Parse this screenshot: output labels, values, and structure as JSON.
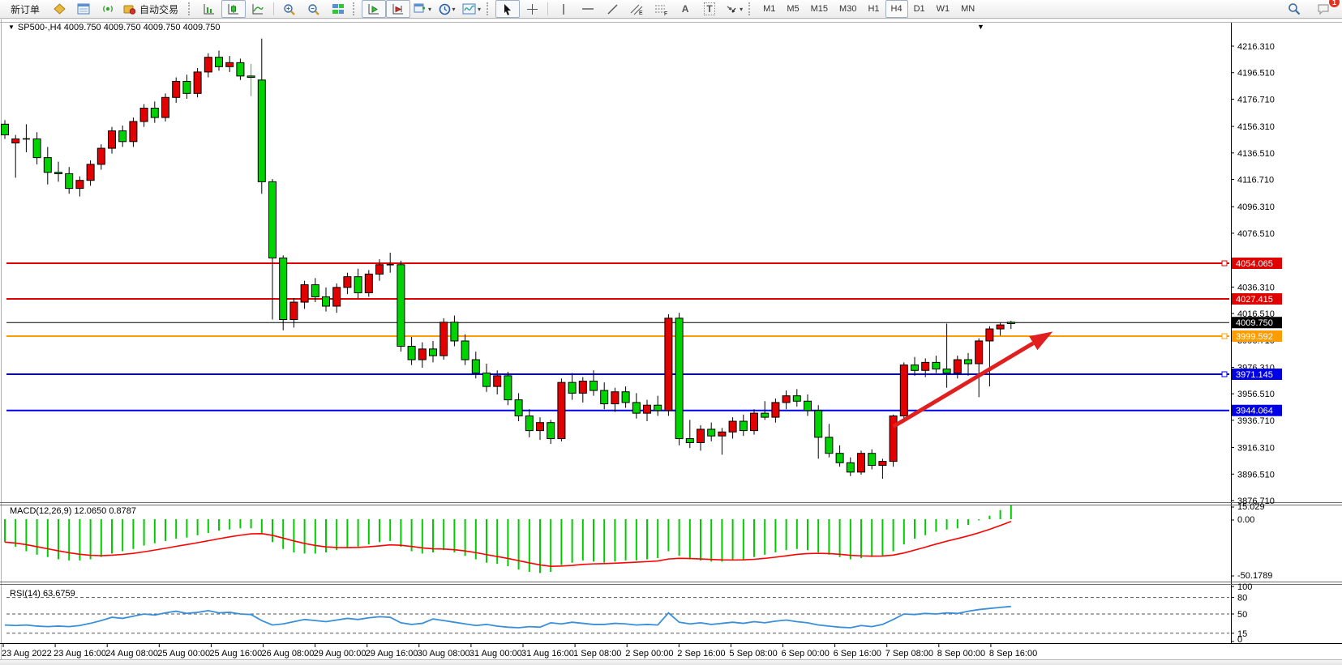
{
  "toolbar": {
    "new_order": "新订单",
    "autotrade": "自动交易",
    "timeframes": [
      "M1",
      "M5",
      "M15",
      "M30",
      "H1",
      "H4",
      "D1",
      "W1",
      "MN"
    ],
    "active_timeframe": "H4",
    "notification_count": "1",
    "icon_letters": {
      "text": "A",
      "label": "T",
      "channel": "E",
      "fibo": "F"
    }
  },
  "chart_data": {
    "type": "candlestick",
    "symbol": "SP500-",
    "period": "H4",
    "symbol_ohlc": "SP500-,H4  4009.750 4009.750 4009.750 4009.750",
    "dropdown_marker": "▼",
    "shift_marker": "▼",
    "colors": {
      "up": "#E30000",
      "down": "#00D400",
      "wick": "#000000",
      "background": "#FFFFFF"
    },
    "price_axis": {
      "top_price": 4216.31,
      "bottom_price": 3876.71,
      "ticks": [
        "4216.310",
        "4196.510",
        "4176.710",
        "4156.310",
        "4136.510",
        "4116.710",
        "4096.310",
        "4076.510",
        "4036.310",
        "4016.510",
        "3996.710",
        "3976.310",
        "3956.510",
        "3936.710",
        "3916.310",
        "3896.510",
        "3876.710"
      ]
    },
    "hlines": [
      {
        "price": 4054.065,
        "label": "4054.065",
        "color": "#E00000",
        "width": 2,
        "marker": true
      },
      {
        "price": 4027.415,
        "label": "4027.415",
        "color": "#E00000",
        "width": 2,
        "marker": false
      },
      {
        "price": 4009.75,
        "label": "4009.750",
        "color": "#000000",
        "width": 1,
        "marker": false
      },
      {
        "price": 3999.592,
        "label": "3999.592",
        "color": "#FF9C00",
        "width": 2,
        "marker": true
      },
      {
        "price": 3971.145,
        "label": "3971.145",
        "color": "#0000E8",
        "width": 2,
        "marker": true
      },
      {
        "price": 3944.064,
        "label": "3944.064",
        "color": "#0000E8",
        "width": 2,
        "marker": false
      }
    ],
    "candles": [
      [
        4158,
        4161,
        4147,
        4150
      ],
      [
        4144,
        4150,
        4118,
        4147
      ],
      [
        4147,
        4158,
        4137,
        4147,
        "k"
      ],
      [
        4147,
        4152,
        4128,
        4133
      ],
      [
        4133,
        4141,
        4113,
        4122
      ],
      [
        4122,
        4130,
        4115,
        4121
      ],
      [
        4121,
        4126,
        4106,
        4110
      ],
      [
        4110,
        4119,
        4104,
        4116
      ],
      [
        4116,
        4131,
        4112,
        4128
      ],
      [
        4128,
        4143,
        4124,
        4140
      ],
      [
        4140,
        4156,
        4136,
        4153
      ],
      [
        4153,
        4157,
        4141,
        4145
      ],
      [
        4145,
        4163,
        4141,
        4160
      ],
      [
        4160,
        4173,
        4156,
        4170
      ],
      [
        4170,
        4175,
        4159,
        4163
      ],
      [
        4163,
        4181,
        4160,
        4178
      ],
      [
        4178,
        4193,
        4174,
        4190
      ],
      [
        4190,
        4195,
        4177,
        4181
      ],
      [
        4181,
        4200,
        4178,
        4197
      ],
      [
        4197,
        4211,
        4193,
        4208
      ],
      [
        4208,
        4213,
        4198,
        4201
      ],
      [
        4201,
        4209,
        4197,
        4204
      ],
      [
        4204,
        4207,
        4191,
        4194
      ],
      [
        4194,
        4203,
        4179,
        4193,
        "g"
      ],
      [
        4191,
        4222,
        4106,
        4115
      ],
      [
        4115,
        4117,
        4012,
        4058
      ],
      [
        4058,
        4060,
        4004,
        4012
      ],
      [
        4012,
        4028,
        4006,
        4025
      ],
      [
        4025,
        4041,
        4020,
        4038
      ],
      [
        4038,
        4043,
        4025,
        4029
      ],
      [
        4029,
        4036,
        4018,
        4022
      ],
      [
        4022,
        4039,
        4017,
        4036
      ],
      [
        4036,
        4047,
        4031,
        4044
      ],
      [
        4044,
        4050,
        4028,
        4032
      ],
      [
        4032,
        4049,
        4029,
        4046
      ],
      [
        4046,
        4057,
        4041,
        4053
      ],
      [
        4053,
        4062,
        4047,
        4053,
        "k"
      ],
      [
        4053,
        4056,
        3988,
        3992
      ],
      [
        3992,
        3999,
        3978,
        3982
      ],
      [
        3982,
        3995,
        3976,
        3990
      ],
      [
        3990,
        3996,
        3980,
        3985
      ],
      [
        3985,
        4013,
        3982,
        4010
      ],
      [
        4010,
        4015,
        3992,
        3996
      ],
      [
        3996,
        4001,
        3978,
        3982
      ],
      [
        3982,
        3988,
        3968,
        3972
      ],
      [
        3972,
        3979,
        3958,
        3962
      ],
      [
        3962,
        3974,
        3956,
        3970
      ],
      [
        3970,
        3973,
        3948,
        3952
      ],
      [
        3952,
        3957,
        3936,
        3940
      ],
      [
        3940,
        3945,
        3924,
        3929
      ],
      [
        3929,
        3939,
        3922,
        3935
      ],
      [
        3935,
        3937,
        3919,
        3923
      ],
      [
        3923,
        3968,
        3921,
        3965
      ],
      [
        3965,
        3972,
        3952,
        3957
      ],
      [
        3957,
        3969,
        3950,
        3966
      ],
      [
        3966,
        3974,
        3955,
        3959
      ],
      [
        3959,
        3965,
        3945,
        3949
      ],
      [
        3949,
        3961,
        3943,
        3958
      ],
      [
        3958,
        3962,
        3946,
        3950
      ],
      [
        3950,
        3957,
        3938,
        3942
      ],
      [
        3942,
        3952,
        3936,
        3948
      ],
      [
        3948,
        3955,
        3940,
        3944
      ],
      [
        3944,
        4016,
        3940,
        4013
      ],
      [
        4013,
        4017,
        3918,
        3923
      ],
      [
        3923,
        3937,
        3916,
        3920
      ],
      [
        3920,
        3933,
        3914,
        3930
      ],
      [
        3930,
        3935,
        3921,
        3925
      ],
      [
        3925,
        3931,
        3911,
        3928
      ],
      [
        3928,
        3939,
        3923,
        3936
      ],
      [
        3936,
        3941,
        3925,
        3929
      ],
      [
        3929,
        3945,
        3926,
        3942
      ],
      [
        3942,
        3951,
        3937,
        3939
      ],
      [
        3939,
        3953,
        3935,
        3950
      ],
      [
        3950,
        3959,
        3945,
        3955
      ],
      [
        3955,
        3960,
        3947,
        3951
      ],
      [
        3951,
        3956,
        3940,
        3944
      ],
      [
        3944,
        3948,
        3908,
        3924
      ],
      [
        3924,
        3934,
        3909,
        3912
      ],
      [
        3912,
        3918,
        3902,
        3905
      ],
      [
        3905,
        3909,
        3895,
        3898
      ],
      [
        3898,
        3914,
        3896,
        3912
      ],
      [
        3912,
        3915,
        3900,
        3903
      ],
      [
        3903,
        3908,
        3893,
        3906
      ],
      [
        3906,
        3941,
        3902,
        3940
      ],
      [
        3940,
        3980,
        3936,
        3978
      ],
      [
        3978,
        3984,
        3970,
        3974
      ],
      [
        3974,
        3983,
        3969,
        3980
      ],
      [
        3980,
        3985,
        3972,
        3975
      ],
      [
        3975,
        4009,
        3961,
        3972
      ],
      [
        3972,
        3985,
        3968,
        3982
      ],
      [
        3982,
        3987,
        3970,
        3979
      ],
      [
        3979,
        3998,
        3954,
        3996
      ],
      [
        3996,
        4007,
        3962,
        4005
      ],
      [
        4005,
        4010,
        4000,
        4008
      ],
      [
        4010,
        4011,
        4005,
        4009
      ]
    ],
    "time_labels": [
      "23 Aug 2022",
      "23 Aug 16:00",
      "24 Aug 08:00",
      "25 Aug 00:00",
      "25 Aug 16:00",
      "26 Aug 08:00",
      "29 Aug 00:00",
      "29 Aug 16:00",
      "30 Aug 08:00",
      "31 Aug 00:00",
      "31 Aug 16:00",
      "1 Sep 08:00",
      "2 Sep 00:00",
      "2 Sep 16:00",
      "5 Sep 08:00",
      "6 Sep 00:00",
      "6 Sep 16:00",
      "7 Sep 08:00",
      "8 Sep 00:00",
      "8 Sep 16:00"
    ],
    "arrow": {
      "from_index": 83,
      "from_price": 3932,
      "to_index": 97.9,
      "to_price": 4003,
      "color": "#E01F1F"
    },
    "macd": {
      "name": "MACD(12,26,9)",
      "value": "12.0650",
      "signal": "0.8787",
      "max_label": "15.029",
      "zero_label": "0.00",
      "min_label": "-50.1789",
      "hist_color": "#00CC00",
      "signal_color": "#FF0000",
      "histogram": [
        -20,
        -24,
        -28,
        -31,
        -33,
        -35,
        -36,
        -36,
        -35,
        -33,
        -30,
        -28,
        -26,
        -23,
        -21,
        -19,
        -17,
        -16,
        -14,
        -12,
        -10,
        -9,
        -8,
        -8,
        -12,
        -20,
        -26,
        -29,
        -30,
        -30,
        -29,
        -27,
        -25,
        -24,
        -22,
        -20,
        -19,
        -24,
        -28,
        -30,
        -29,
        -27,
        -29,
        -32,
        -35,
        -38,
        -39,
        -41,
        -44,
        -46,
        -47,
        -46,
        -40,
        -38,
        -36,
        -37,
        -38,
        -37,
        -36,
        -36,
        -35,
        -34,
        -28,
        -32,
        -35,
        -36,
        -37,
        -37,
        -36,
        -35,
        -33,
        -31,
        -29,
        -27,
        -26,
        -27,
        -29,
        -31,
        -33,
        -35,
        -34,
        -33,
        -32,
        -28,
        -22,
        -17,
        -14,
        -11,
        -9,
        -8,
        -5,
        -1,
        3,
        8,
        12.06
      ]
    },
    "rsi": {
      "name": "RSI(14)",
      "value": "63.6759",
      "color": "#3A8FD9",
      "levels": [
        80,
        50,
        15
      ],
      "axis_labels": [
        "100",
        "80",
        "50",
        "15",
        "0"
      ],
      "values": [
        30,
        29,
        30,
        28,
        27,
        28,
        27,
        29,
        33,
        38,
        44,
        42,
        46,
        50,
        48,
        52,
        55,
        51,
        53,
        56,
        52,
        53,
        50,
        49,
        38,
        30,
        32,
        36,
        40,
        38,
        36,
        39,
        42,
        40,
        43,
        45,
        44,
        34,
        31,
        33,
        41,
        38,
        35,
        32,
        29,
        31,
        28,
        26,
        25,
        27,
        26,
        34,
        32,
        35,
        33,
        31,
        31,
        33,
        32,
        30,
        31,
        30,
        52,
        35,
        32,
        34,
        31,
        33,
        35,
        33,
        36,
        34,
        37,
        39,
        36,
        34,
        30,
        28,
        26,
        25,
        29,
        27,
        31,
        40,
        50,
        49,
        51,
        50,
        52,
        51,
        55,
        58,
        60,
        62,
        63.7
      ]
    }
  }
}
